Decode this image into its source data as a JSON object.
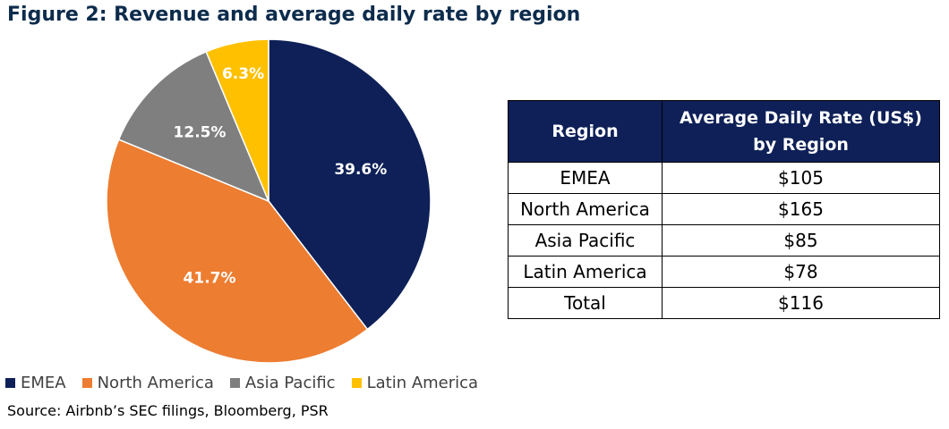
{
  "title": "Figure 2: Revenue and average daily rate by region",
  "source": "Source: Airbnb’s SEC filings, Bloomberg, PSR",
  "colors": {
    "emea": "#0e2057",
    "north_america": "#ed7d31",
    "asia_pacific": "#7f7f7f",
    "latin_america": "#ffc000",
    "table_header": "#0e2057"
  },
  "chart_data": {
    "type": "pie",
    "categories": [
      "EMEA",
      "North America",
      "Asia Pacific",
      "Latin America"
    ],
    "values": [
      39.6,
      41.7,
      12.5,
      6.3
    ],
    "labels": [
      "39.6%",
      "41.7%",
      "12.5%",
      "6.3%"
    ],
    "colors": [
      "#0e2057",
      "#ed7d31",
      "#7f7f7f",
      "#ffc000"
    ],
    "legend_position": "bottom-left",
    "start": "12 o'clock, clockwise"
  },
  "legend": [
    {
      "label": "EMEA",
      "color": "#0e2057"
    },
    {
      "label": "North America",
      "color": "#ed7d31"
    },
    {
      "label": "Asia Pacific",
      "color": "#7f7f7f"
    },
    {
      "label": "Latin America",
      "color": "#ffc000"
    }
  ],
  "table": {
    "header_region": "Region",
    "header_rate_line1": "Average Daily Rate (US$)",
    "header_rate_line2": "by Region",
    "rows": [
      {
        "region": "EMEA",
        "rate": "$105"
      },
      {
        "region": "North America",
        "rate": "$165"
      },
      {
        "region": "Asia Pacific",
        "rate": "$85"
      },
      {
        "region": "Latin America",
        "rate": "$78"
      },
      {
        "region": "Total",
        "rate": "$116"
      }
    ]
  }
}
